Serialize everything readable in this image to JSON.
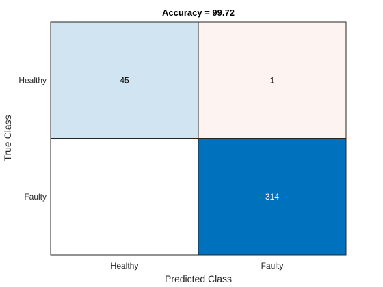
{
  "chart_data": {
    "type": "heatmap",
    "title": "Accuracy = 99.72",
    "xlabel": "Predicted Class",
    "ylabel": "True Class",
    "x_categories": [
      "Healthy",
      "Faulty"
    ],
    "y_categories": [
      "Healthy",
      "Faulty"
    ],
    "values": [
      [
        45,
        1
      ],
      [
        null,
        314
      ]
    ],
    "cell_colors": [
      [
        "#d0e4f2",
        "#fdf3f1"
      ],
      [
        "#ffffff",
        "#0072bd"
      ]
    ],
    "cell_text_colors": [
      [
        "#000000",
        "#000000"
      ],
      [
        "#000000",
        "#ffffff"
      ]
    ],
    "grid": true,
    "colorbar": false
  }
}
